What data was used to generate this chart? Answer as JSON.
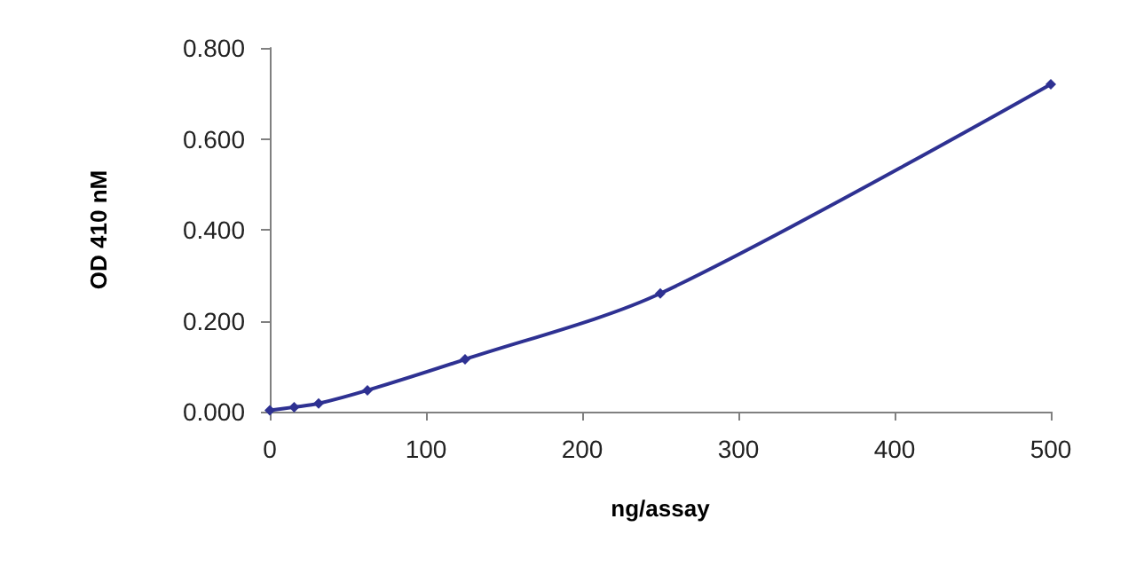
{
  "chart_data": {
    "type": "line",
    "xlabel": "ng/assay",
    "ylabel": "OD 410 nM",
    "x": [
      0,
      15.6,
      31.25,
      62.5,
      125,
      250,
      500
    ],
    "series": [
      {
        "color": "#2e3192",
        "values": [
          0.003,
          0.01,
          0.018,
          0.047,
          0.115,
          0.26,
          0.72
        ]
      }
    ],
    "xlim": [
      0,
      500
    ],
    "xticks": [
      0,
      100,
      200,
      300,
      400,
      500
    ],
    "ylim": [
      0,
      0.8
    ],
    "yticks": [
      {
        "value": 0,
        "label": "0.000"
      },
      {
        "value": 0.2,
        "label": "0.200"
      },
      {
        "value": 0.4,
        "label": "0.400"
      },
      {
        "value": 0.6,
        "label": "0.600"
      },
      {
        "value": 0.8,
        "label": "0.800"
      }
    ],
    "grid": false,
    "marker": "diamond",
    "line_style": "solid"
  }
}
